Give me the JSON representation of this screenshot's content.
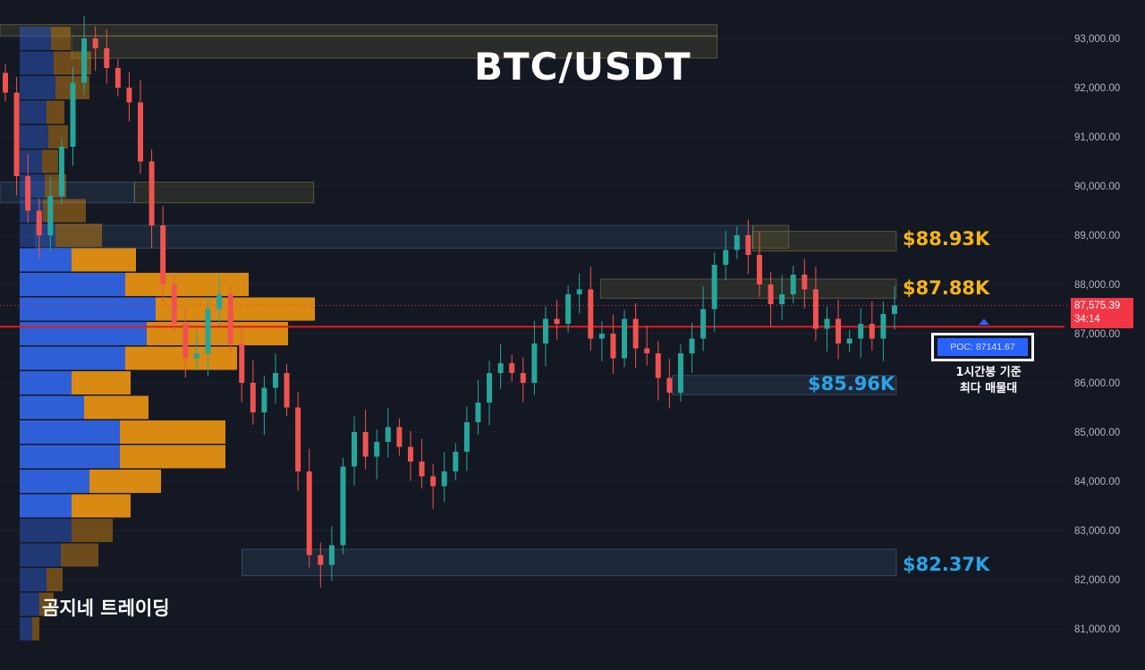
{
  "title": "BTC/USDT",
  "watermark": "곰지네 트레이딩",
  "colors": {
    "background": "#141823",
    "up": "#26a69a",
    "down": "#ef5350",
    "resistance": "#f5b417",
    "support": "#29a3e6",
    "poc": "#2962ff",
    "poc_line": "#e01b1b",
    "volume_blue": "#2f5fd6",
    "volume_orange": "#d98a12"
  },
  "price_axis": {
    "ticks": [
      "93,000.00",
      "92,000.00",
      "91,000.00",
      "90,000.00",
      "89,000.00",
      "88,000.00",
      "87,000.00",
      "86,000.00",
      "85,000.00",
      "84,000.00",
      "83,000.00",
      "82,000.00",
      "81,000.00"
    ]
  },
  "levels": [
    {
      "label": "$88.93K",
      "type": "resistance"
    },
    {
      "label": "$87.88K",
      "type": "resistance"
    },
    {
      "label": "$85.96K",
      "type": "support"
    },
    {
      "label": "$82.37K",
      "type": "support"
    }
  ],
  "current_price": {
    "price": "87,575.39",
    "countdown": "34:14"
  },
  "poc": {
    "label": "POC: 87141.67",
    "value": 87141.67,
    "note_line1": "1시간봉 기준",
    "note_line2": "최다 매물대"
  },
  "chart_data": {
    "type": "candlestick",
    "title": "BTC/USDT",
    "ylim": [
      80600,
      93800
    ],
    "y_ticks": [
      93000,
      92000,
      91000,
      90000,
      89000,
      88000,
      87000,
      86000,
      85000,
      84000,
      83000,
      82000,
      81000
    ],
    "last_price": 87575.39,
    "poc": 87141.67,
    "closes": [
      91900,
      90200,
      89500,
      89000,
      89800,
      90800,
      92100,
      93000,
      92800,
      92400,
      92000,
      91700,
      90500,
      89200,
      88000,
      87200,
      86500,
      86600,
      87500,
      87800,
      86800,
      86000,
      85400,
      85900,
      86200,
      85500,
      84200,
      82500,
      82300,
      82700,
      84300,
      85000,
      84500,
      84800,
      85100,
      84700,
      84400,
      84100,
      83900,
      84200,
      84600,
      85200,
      85600,
      86200,
      86400,
      86200,
      86000,
      86800,
      87300,
      87200,
      87800,
      87900,
      86900,
      87000,
      86500,
      87300,
      86700,
      86600,
      86100,
      85800,
      86600,
      86900,
      87500,
      88400,
      88700,
      89000,
      88600,
      88000,
      87600,
      87800,
      88200,
      87900,
      87100,
      87300,
      86800,
      86900,
      87200,
      86900,
      87400,
      87575
    ],
    "volume_profile": [
      {
        "price": 93000,
        "blue": 35,
        "orange": 22
      },
      {
        "price": 92500,
        "blue": 38,
        "orange": 42
      },
      {
        "price": 92000,
        "blue": 40,
        "orange": 38
      },
      {
        "price": 91500,
        "blue": 30,
        "orange": 20
      },
      {
        "price": 91000,
        "blue": 32,
        "orange": 22
      },
      {
        "price": 90500,
        "blue": 25,
        "orange": 18
      },
      {
        "price": 90000,
        "blue": 28,
        "orange": 24
      },
      {
        "price": 89500,
        "blue": 26,
        "orange": 48
      },
      {
        "price": 89000,
        "blue": 40,
        "orange": 52
      },
      {
        "price": 88500,
        "blue": 58,
        "orange": 72
      },
      {
        "price": 88000,
        "blue": 118,
        "orange": 138
      },
      {
        "price": 87500,
        "blue": 152,
        "orange": 178
      },
      {
        "price": 87000,
        "blue": 142,
        "orange": 158
      },
      {
        "price": 86500,
        "blue": 118,
        "orange": 125
      },
      {
        "price": 86000,
        "blue": 58,
        "orange": 66
      },
      {
        "price": 85500,
        "blue": 72,
        "orange": 72
      },
      {
        "price": 85000,
        "blue": 112,
        "orange": 118
      },
      {
        "price": 84500,
        "blue": 112,
        "orange": 118
      },
      {
        "price": 84000,
        "blue": 78,
        "orange": 80
      },
      {
        "price": 83500,
        "blue": 58,
        "orange": 66
      },
      {
        "price": 83000,
        "blue": 58,
        "orange": 46
      },
      {
        "price": 82500,
        "blue": 46,
        "orange": 42
      },
      {
        "price": 82000,
        "blue": 30,
        "orange": 18
      },
      {
        "price": 81500,
        "blue": 22,
        "orange": 16
      },
      {
        "price": 81000,
        "blue": 14,
        "orange": 8
      }
    ],
    "zones": [
      {
        "low": 93050,
        "high": 93280,
        "kind": "resistance",
        "start": 0.0,
        "end": 0.8
      },
      {
        "low": 92600,
        "high": 93050,
        "kind": "resistance",
        "start": 0.08,
        "end": 0.8
      },
      {
        "low": 89660,
        "high": 90080,
        "kind": "support",
        "start": 0.0,
        "end": 0.15
      },
      {
        "low": 89660,
        "high": 90080,
        "kind": "resistance",
        "start": 0.15,
        "end": 0.35
      },
      {
        "low": 88740,
        "high": 89200,
        "kind": "support",
        "start": 0.04,
        "end": 0.84
      },
      {
        "low": 88740,
        "high": 89200,
        "kind": "resistance",
        "start": 0.84,
        "end": 0.88
      },
      {
        "low": 88680,
        "high": 89080,
        "kind": "resistance",
        "start": 0.84,
        "end": 1.0
      },
      {
        "low": 87720,
        "high": 88110,
        "kind": "resistance",
        "start": 0.67,
        "end": 1.0
      },
      {
        "low": 85760,
        "high": 86150,
        "kind": "support",
        "start": 0.75,
        "end": 1.0
      },
      {
        "low": 82080,
        "high": 82620,
        "kind": "support",
        "start": 0.27,
        "end": 1.0
      }
    ]
  }
}
